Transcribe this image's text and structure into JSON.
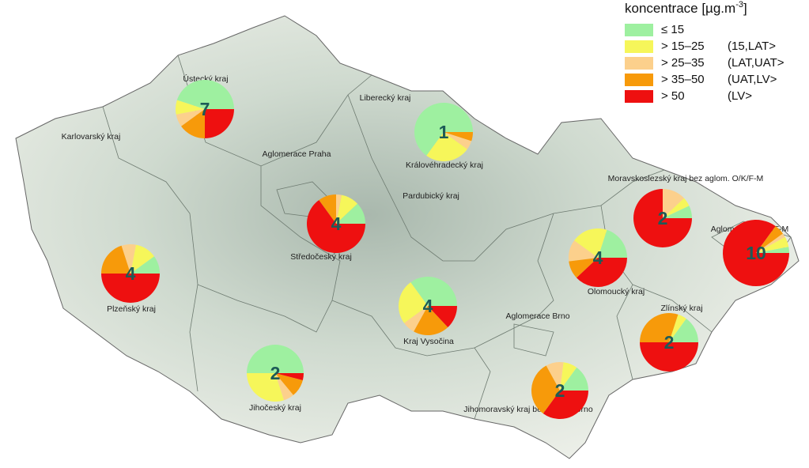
{
  "legend": {
    "title": {
      "text": "koncentrace [µg.m",
      "sup": "-3",
      "end": "]"
    },
    "items": [
      {
        "label": "≤ 15",
        "color": "#9ef0a0"
      },
      {
        "label": "> 15–25",
        "range": "(15,LAT>",
        "color": "#f6f65a"
      },
      {
        "label": "> 25–35",
        "range": "(LAT,UAT>",
        "color": "#fcd08c"
      },
      {
        "label": "> 35–50",
        "range": "(UAT,LV>",
        "color": "#f79a0a"
      },
      {
        "label": "> 50",
        "range": "(LV>",
        "color": "#ee1010"
      }
    ]
  },
  "regions": [
    {
      "label": "Ústecký kraj"
    },
    {
      "label": "Karlovarský kraj"
    },
    {
      "label": "Liberecký kraj"
    },
    {
      "label": "Aglomerace Praha"
    },
    {
      "label": "Královéhradecký kraj"
    },
    {
      "label": "Pardubický kraj"
    },
    {
      "label": "Středočeský kraj"
    },
    {
      "label": "Plzeňský kraj"
    },
    {
      "label": "Kraj Vysočina"
    },
    {
      "label": "Olomoucký kraj"
    },
    {
      "label": "Zlínský kraj"
    },
    {
      "label": "Aglomerace Brno"
    },
    {
      "label": "Jihočeský kraj"
    },
    {
      "label": "Jihomoravský kraj bez aglom. Brno"
    },
    {
      "label": "Moravskoslezský kraj bez aglom. O/K/F-M"
    },
    {
      "label": "Aglomerace O/K/F-M"
    }
  ],
  "pies": [
    {
      "count": 7,
      "values": [
        45,
        8,
        7,
        15,
        25
      ]
    },
    {
      "count": 1,
      "values": [
        65,
        25,
        5,
        5,
        0
      ]
    },
    {
      "count": 4,
      "values": [
        12,
        10,
        3,
        10,
        65
      ]
    },
    {
      "count": 4,
      "values": [
        10,
        12,
        8,
        20,
        50
      ]
    },
    {
      "count": 2,
      "values": [
        50,
        30,
        6,
        10,
        4
      ]
    },
    {
      "count": 4,
      "values": [
        35,
        25,
        7,
        20,
        13
      ]
    },
    {
      "count": 2,
      "values": [
        15,
        8,
        10,
        32,
        35
      ]
    },
    {
      "count": 4,
      "values": [
        20,
        20,
        12,
        10,
        38
      ]
    },
    {
      "count": 2,
      "values": [
        7,
        5,
        13,
        0,
        75
      ]
    },
    {
      "count": 10,
      "values": [
        3,
        5,
        2,
        5,
        85
      ]
    },
    {
      "count": 2,
      "values": [
        15,
        5,
        0,
        30,
        50
      ]
    }
  ]
}
